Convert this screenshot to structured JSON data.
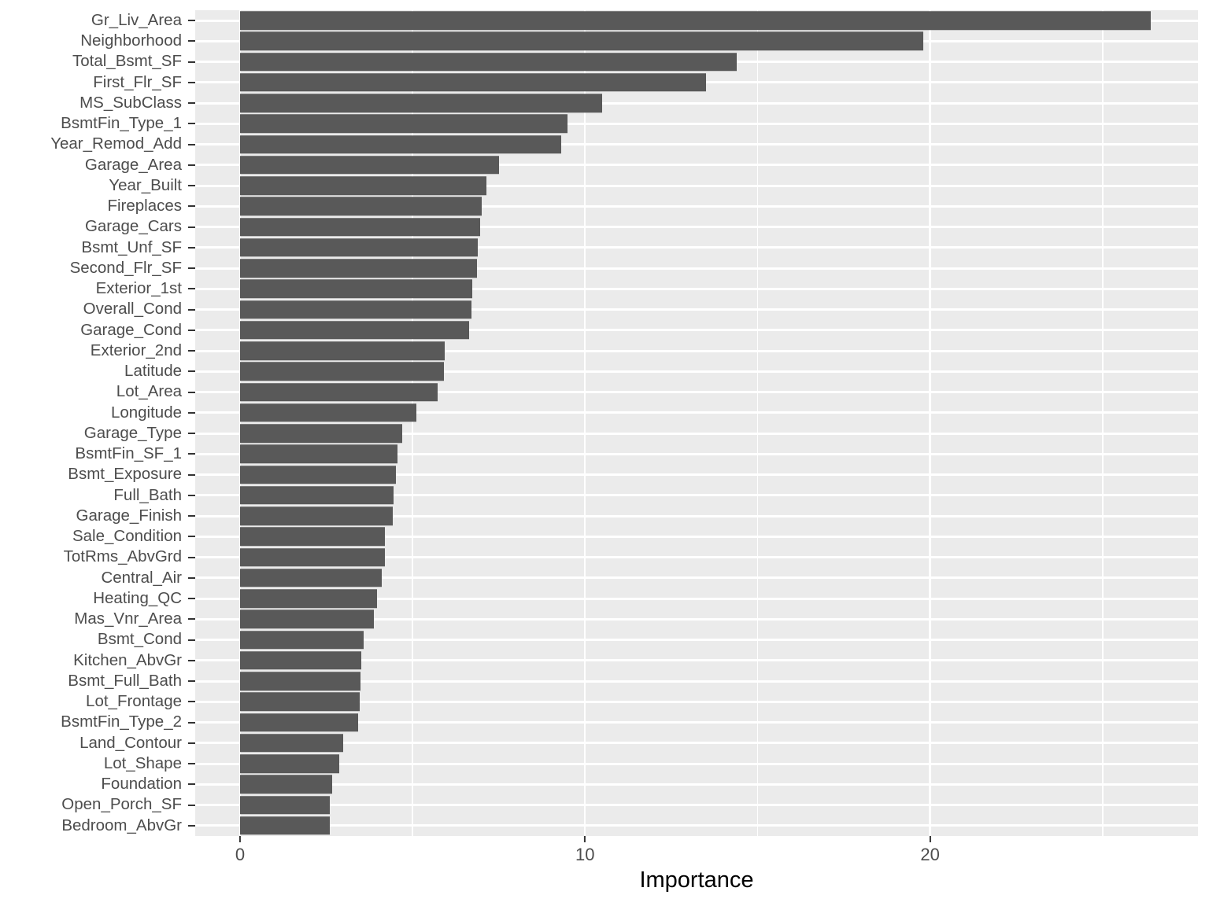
{
  "chart_data": {
    "type": "bar",
    "orientation": "horizontal",
    "title": "",
    "xlabel": "Importance",
    "ylabel": "",
    "legend": "none",
    "grid": "on",
    "xlim": [
      -1.3,
      27.8
    ],
    "x_ticks": [
      0,
      10,
      20
    ],
    "x_minor_gridlines": [
      5,
      15,
      25
    ],
    "categories": [
      "Gr_Liv_Area",
      "Neighborhood",
      "Total_Bsmt_SF",
      "First_Flr_SF",
      "MS_SubClass",
      "BsmtFin_Type_1",
      "Year_Remod_Add",
      "Garage_Area",
      "Year_Built",
      "Fireplaces",
      "Garage_Cars",
      "Bsmt_Unf_SF",
      "Second_Flr_SF",
      "Exterior_1st",
      "Overall_Cond",
      "Garage_Cond",
      "Exterior_2nd",
      "Latitude",
      "Lot_Area",
      "Longitude",
      "Garage_Type",
      "BsmtFin_SF_1",
      "Bsmt_Exposure",
      "Full_Bath",
      "Garage_Finish",
      "Sale_Condition",
      "TotRms_AbvGrd",
      "Central_Air",
      "Heating_QC",
      "Mas_Vnr_Area",
      "Bsmt_Cond",
      "Kitchen_AbvGr",
      "Bsmt_Full_Bath",
      "Lot_Frontage",
      "BsmtFin_Type_2",
      "Land_Contour",
      "Lot_Shape",
      "Foundation",
      "Open_Porch_SF",
      "Bedroom_AbvGr"
    ],
    "values": [
      26.4,
      19.8,
      14.4,
      13.5,
      10.5,
      9.5,
      9.3,
      7.5,
      7.15,
      7.0,
      6.95,
      6.9,
      6.87,
      6.73,
      6.7,
      6.63,
      5.93,
      5.9,
      5.72,
      5.1,
      4.71,
      4.56,
      4.51,
      4.46,
      4.43,
      4.2,
      4.19,
      4.1,
      3.96,
      3.89,
      3.58,
      3.51,
      3.48,
      3.47,
      3.42,
      2.98,
      2.87,
      2.66,
      2.6,
      2.6
    ],
    "colors": {
      "bar": "#595959",
      "panel_background": "#EBEBEB",
      "gridline": "#FFFFFF",
      "axis_text": "#4D4D4D",
      "axis_title": "#000000",
      "tick_mark": "#333333",
      "figure_background": "#FFFFFF"
    }
  }
}
